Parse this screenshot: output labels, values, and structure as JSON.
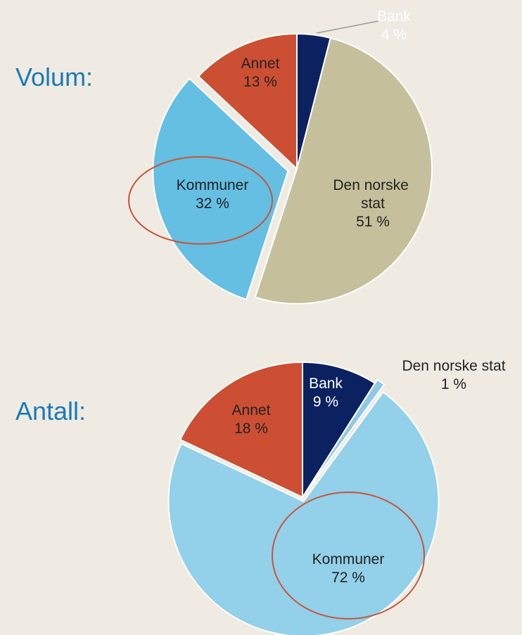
{
  "chart_data": [
    {
      "type": "pie",
      "title": "Volum:",
      "categories": [
        "Bank",
        "Den norske stat",
        "Kommuner",
        "Annet"
      ],
      "values": [
        4,
        51,
        32,
        13
      ],
      "value_labels": [
        "4 %",
        "51 %",
        "32 %",
        "13 %"
      ],
      "colors": [
        "#0b2160",
        "#c6bf9c",
        "#64bfe3",
        "#cc4f33"
      ]
    },
    {
      "type": "pie",
      "title": "Antall:",
      "categories": [
        "Bank",
        "Den norske stat",
        "Kommuner",
        "Annet"
      ],
      "values": [
        9,
        1,
        72,
        18
      ],
      "value_labels": [
        "9 %",
        "1 %",
        "72 %",
        "18 %"
      ],
      "colors": [
        "#0b2160",
        "#8ec9e6",
        "#93d0e9",
        "#cc4f33"
      ]
    }
  ]
}
